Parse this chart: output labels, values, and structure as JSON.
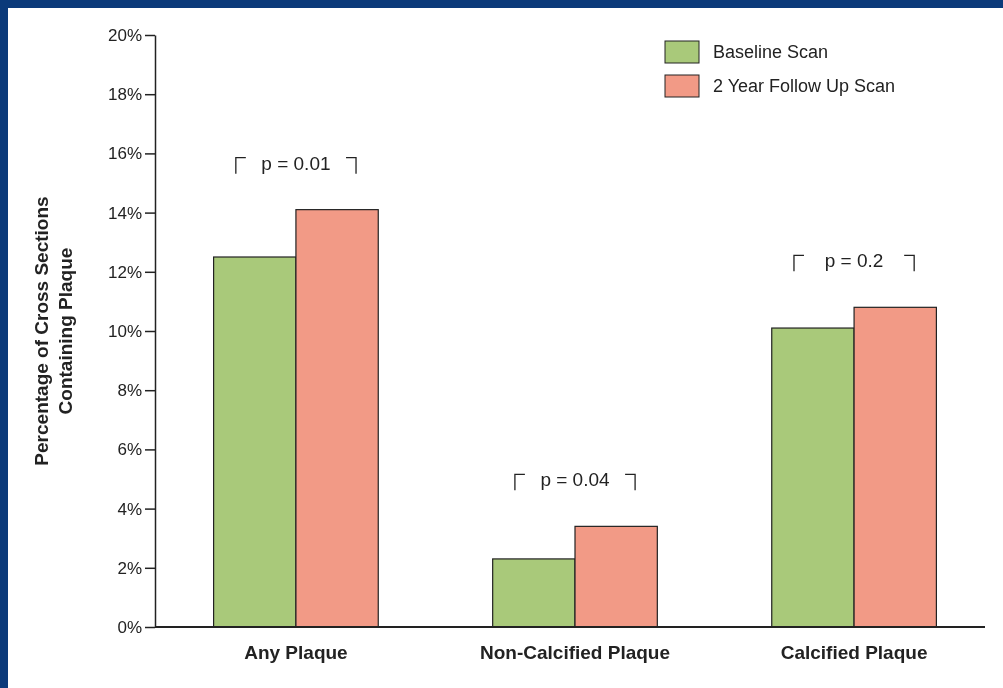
{
  "chart_data": {
    "type": "bar",
    "ylabel": "Percentage of Cross Sections\nContaining Plaque",
    "categories": [
      "Any Plaque",
      "Non-Calcified Plaque",
      "Calcified Plaque"
    ],
    "series": [
      {
        "name": "Baseline Scan",
        "color": "#a9c97a",
        "values": [
          12.5,
          2.3,
          10.1
        ]
      },
      {
        "name": "2 Year Follow Up Scan",
        "color": "#f29a86",
        "values": [
          14.1,
          3.4,
          10.8
        ]
      }
    ],
    "ylim": [
      0,
      20
    ],
    "yticks": [
      {
        "value": 0,
        "label": "0%"
      },
      {
        "value": 2,
        "label": "2%"
      },
      {
        "value": 4,
        "label": "4%"
      },
      {
        "value": 6,
        "label": "6%"
      },
      {
        "value": 8,
        "label": "8%"
      },
      {
        "value": 10,
        "label": "10%"
      },
      {
        "value": 12,
        "label": "12%"
      },
      {
        "value": 14,
        "label": "14%"
      },
      {
        "value": 16,
        "label": "16%"
      },
      {
        "value": 18,
        "label": "18%"
      },
      {
        "value": 20,
        "label": "20%"
      }
    ],
    "grid": false,
    "legend": "top right",
    "annotations": [
      "p = 0.01",
      "p = 0.04",
      "p = 0.2"
    ]
  }
}
